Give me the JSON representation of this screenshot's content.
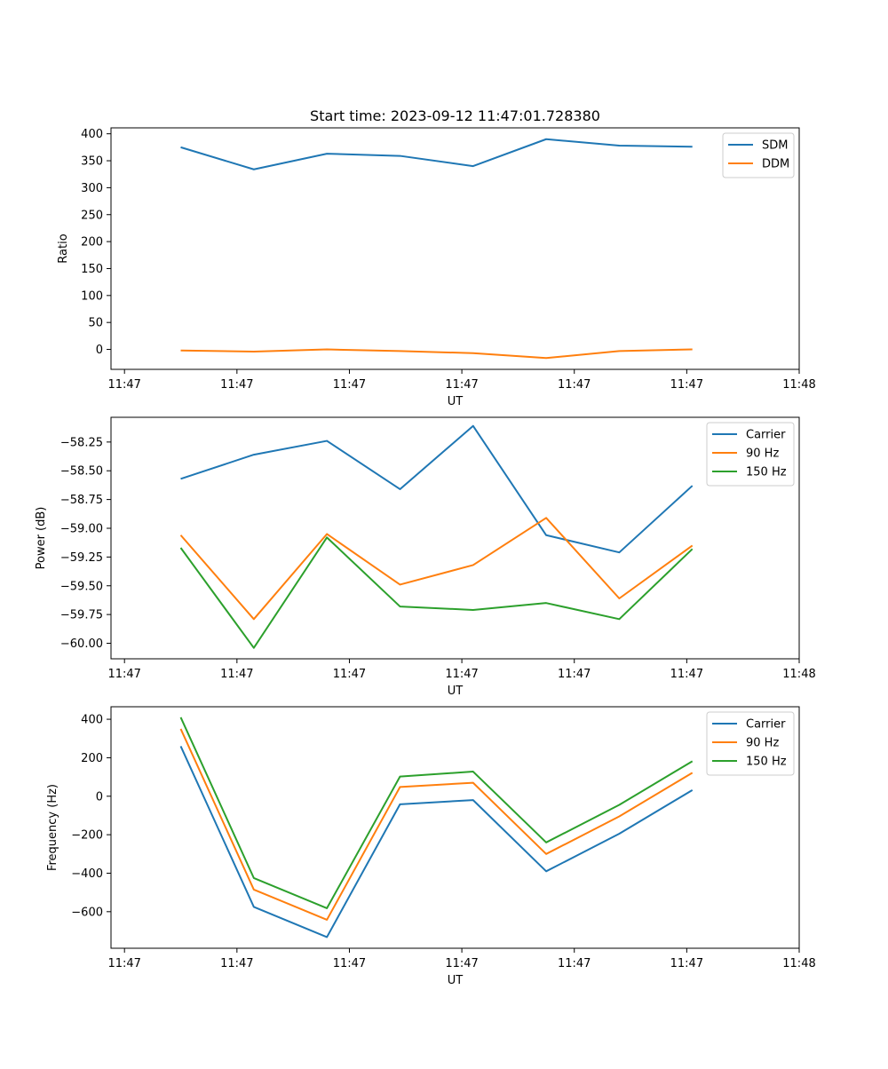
{
  "chart_data": [
    {
      "type": "line",
      "title": "Start time: 2023-09-12 11:47:01.728380",
      "xlabel": "UT",
      "ylabel": "Ratio",
      "x_tick_labels": [
        "11:47",
        "11:47",
        "11:47",
        "11:47",
        "11:47",
        "11:47",
        "11:48"
      ],
      "x_ticks": [
        0,
        1,
        2,
        3,
        4,
        5,
        6
      ],
      "xlim": [
        -0.12,
        6.0
      ],
      "x": [
        0.5,
        1.15,
        1.8,
        2.45,
        3.1,
        3.75,
        4.4,
        5.05
      ],
      "ylim": [
        -37,
        411
      ],
      "y_ticks": [
        0,
        50,
        100,
        150,
        200,
        250,
        300,
        350,
        400
      ],
      "legend_position": "top-right",
      "series": [
        {
          "name": "SDM",
          "color": "#1f77b4",
          "values": [
            375,
            334,
            363,
            359,
            340,
            390,
            378,
            376
          ]
        },
        {
          "name": "DDM",
          "color": "#ff7f0e",
          "values": [
            -2,
            -4,
            0,
            -3,
            -7,
            -16,
            -3,
            0
          ]
        }
      ]
    },
    {
      "type": "line",
      "title": "",
      "xlabel": "UT",
      "ylabel": "Power (dB)",
      "x_tick_labels": [
        "11:47",
        "11:47",
        "11:47",
        "11:47",
        "11:47",
        "11:47",
        "11:48"
      ],
      "x_ticks": [
        0,
        1,
        2,
        3,
        4,
        5,
        6
      ],
      "xlim": [
        -0.12,
        6.0
      ],
      "x": [
        0.5,
        1.15,
        1.8,
        2.45,
        3.1,
        3.75,
        4.4,
        5.05
      ],
      "ylim": [
        -60.135,
        -58.035
      ],
      "y_ticks": [
        -60.0,
        -59.75,
        -59.5,
        -59.25,
        -59.0,
        -58.75,
        -58.5,
        -58.25
      ],
      "y_tick_labels": [
        "−60.00",
        "−59.75",
        "−59.50",
        "−59.25",
        "−59.00",
        "−58.75",
        "−58.50",
        "−58.25"
      ],
      "legend_position": "top-right",
      "series": [
        {
          "name": "Carrier",
          "color": "#1f77b4",
          "values": [
            -58.57,
            -58.36,
            -58.24,
            -58.66,
            -58.11,
            -59.06,
            -59.21,
            -58.63
          ]
        },
        {
          "name": "90 Hz",
          "color": "#ff7f0e",
          "values": [
            -59.06,
            -59.79,
            -59.05,
            -59.49,
            -59.32,
            -58.91,
            -59.61,
            -59.15
          ]
        },
        {
          "name": "150 Hz",
          "color": "#2ca02c",
          "values": [
            -59.17,
            -60.04,
            -59.08,
            -59.68,
            -59.71,
            -59.65,
            -59.79,
            -59.18
          ]
        }
      ]
    },
    {
      "type": "line",
      "title": "",
      "xlabel": "UT",
      "ylabel": "Frequency (Hz)",
      "x_tick_labels": [
        "11:47",
        "11:47",
        "11:47",
        "11:47",
        "11:47",
        "11:47",
        "11:48"
      ],
      "x_ticks": [
        0,
        1,
        2,
        3,
        4,
        5,
        6
      ],
      "xlim": [
        -0.12,
        6.0
      ],
      "x": [
        0.5,
        1.15,
        1.8,
        2.45,
        3.1,
        3.75,
        4.4,
        5.05
      ],
      "ylim": [
        -790,
        465
      ],
      "y_ticks": [
        -600,
        -400,
        -200,
        0,
        200,
        400
      ],
      "y_tick_labels": [
        "−600",
        "−400",
        "−200",
        "0",
        "200",
        "400"
      ],
      "legend_position": "top-right",
      "series": [
        {
          "name": "Carrier",
          "color": "#1f77b4",
          "values": [
            260,
            -575,
            -732,
            -42,
            -20,
            -390,
            -195,
            32
          ]
        },
        {
          "name": "90 Hz",
          "color": "#ff7f0e",
          "values": [
            350,
            -485,
            -642,
            48,
            70,
            -300,
            -105,
            122
          ]
        },
        {
          "name": "150 Hz",
          "color": "#2ca02c",
          "values": [
            410,
            -425,
            -582,
            102,
            128,
            -240,
            -45,
            182
          ]
        }
      ]
    }
  ]
}
